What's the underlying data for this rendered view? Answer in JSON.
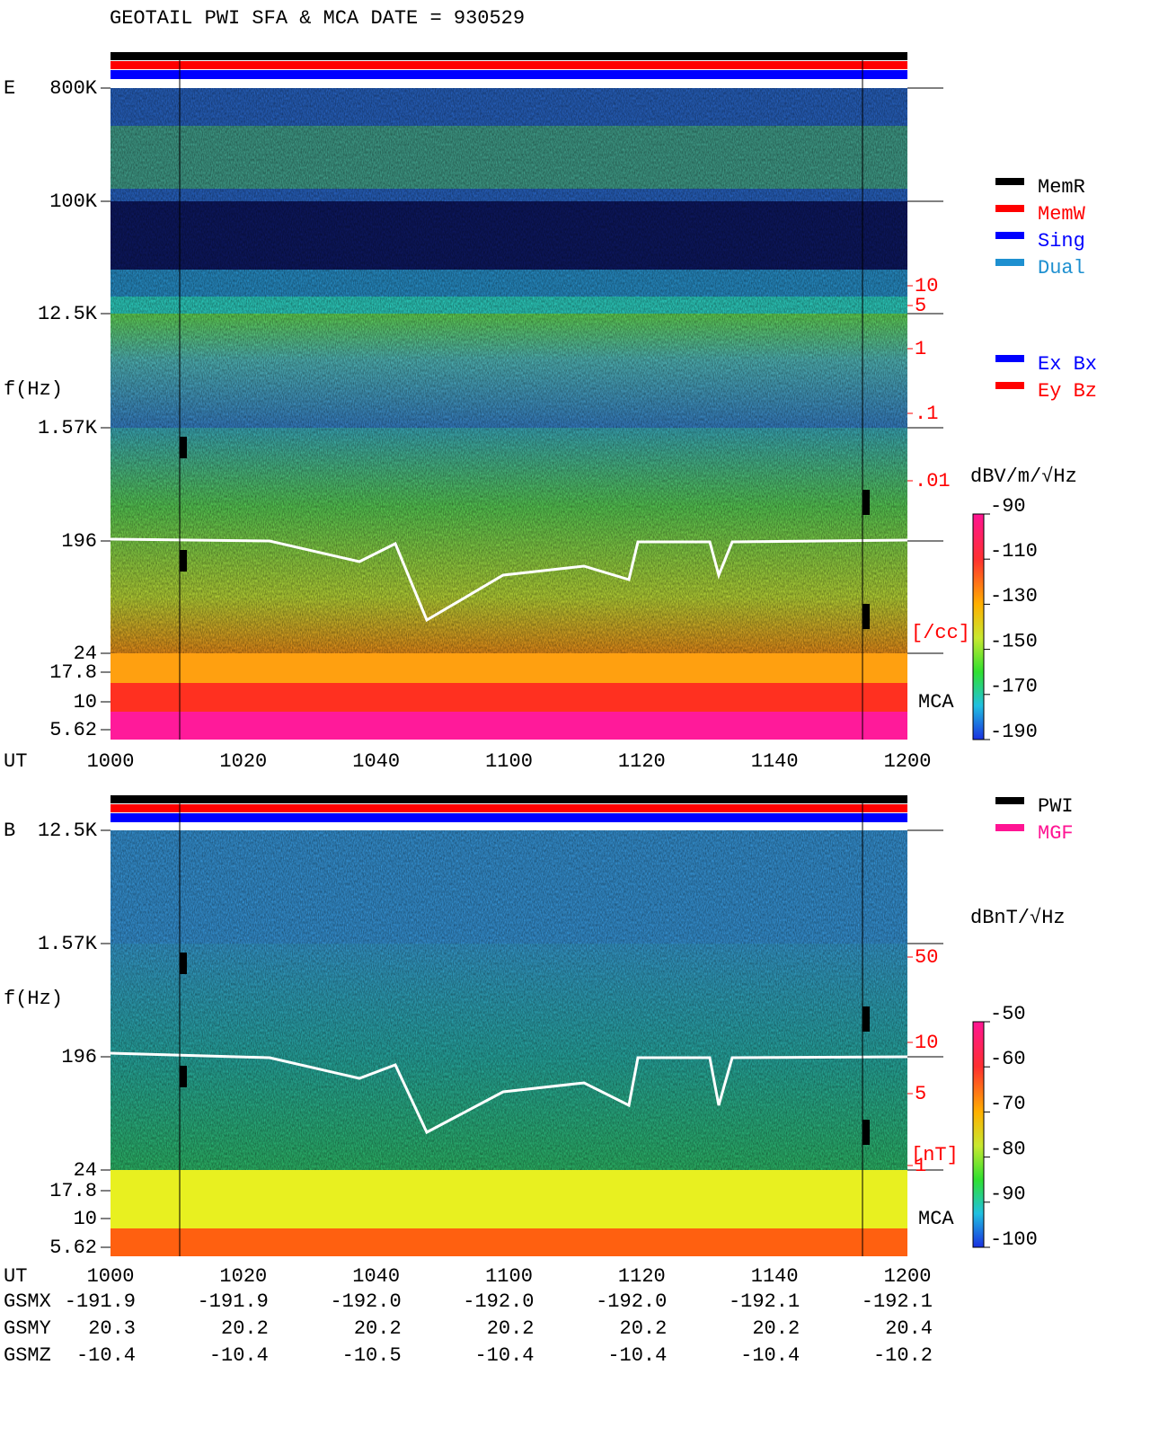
{
  "title": "GEOTAIL  PWI SFA & MCA   DATE = 930529",
  "panel_e": {
    "label": "E",
    "ylabel": "f(Hz)",
    "freq_ticks": [
      "800K",
      "100K",
      "12.5K",
      "1.57K",
      "196",
      "24",
      "17.8",
      "10",
      "5.62"
    ],
    "mca": "MCA",
    "x_label": "UT",
    "x_ticks": [
      "1000",
      "1020",
      "1040",
      "1100",
      "1120",
      "1140",
      "1200"
    ],
    "density_ticks": [
      "10",
      "5",
      "1",
      ".1",
      ".01"
    ],
    "density_unit": "[/cc]",
    "colorbar_unit": "dBV/m/√Hz",
    "colorbar_ticks": [
      "-90",
      "-110",
      "-130",
      "-150",
      "-170",
      "-190"
    ],
    "legend": [
      "MemR",
      "MemW",
      "Sing",
      "Dual"
    ],
    "legend2": [
      "Ex Bx",
      "Ey Bz"
    ]
  },
  "panel_b": {
    "label": "B",
    "ylabel": "f(Hz)",
    "freq_ticks": [
      "12.5K",
      "1.57K",
      "196",
      "24",
      "17.8",
      "10",
      "5.62"
    ],
    "mca": "MCA",
    "x_label": "UT",
    "x_ticks": [
      "1000",
      "1020",
      "1040",
      "1100",
      "1120",
      "1140",
      "1200"
    ],
    "field_ticks": [
      "50",
      "10",
      "5",
      "1"
    ],
    "field_unit": "[nT]",
    "colorbar_unit": "dBnT/√Hz",
    "colorbar_ticks": [
      "-50",
      "-60",
      "-70",
      "-80",
      "-90",
      "-100"
    ],
    "legend": [
      "PWI",
      "MGF"
    ]
  },
  "orbit": [
    {
      "label": "GSMX",
      "values": [
        "-191.9",
        "-191.9",
        "-192.0",
        "-192.0",
        "-192.0",
        "-192.1",
        "-192.1"
      ]
    },
    {
      "label": "GSMY",
      "values": [
        "20.3",
        "20.2",
        "20.2",
        "20.2",
        "20.2",
        "20.2",
        "20.4"
      ]
    },
    {
      "label": "GSMZ",
      "values": [
        "-10.4",
        "-10.4",
        "-10.5",
        "-10.4",
        "-10.4",
        "-10.4",
        "-10.2"
      ]
    }
  ]
}
